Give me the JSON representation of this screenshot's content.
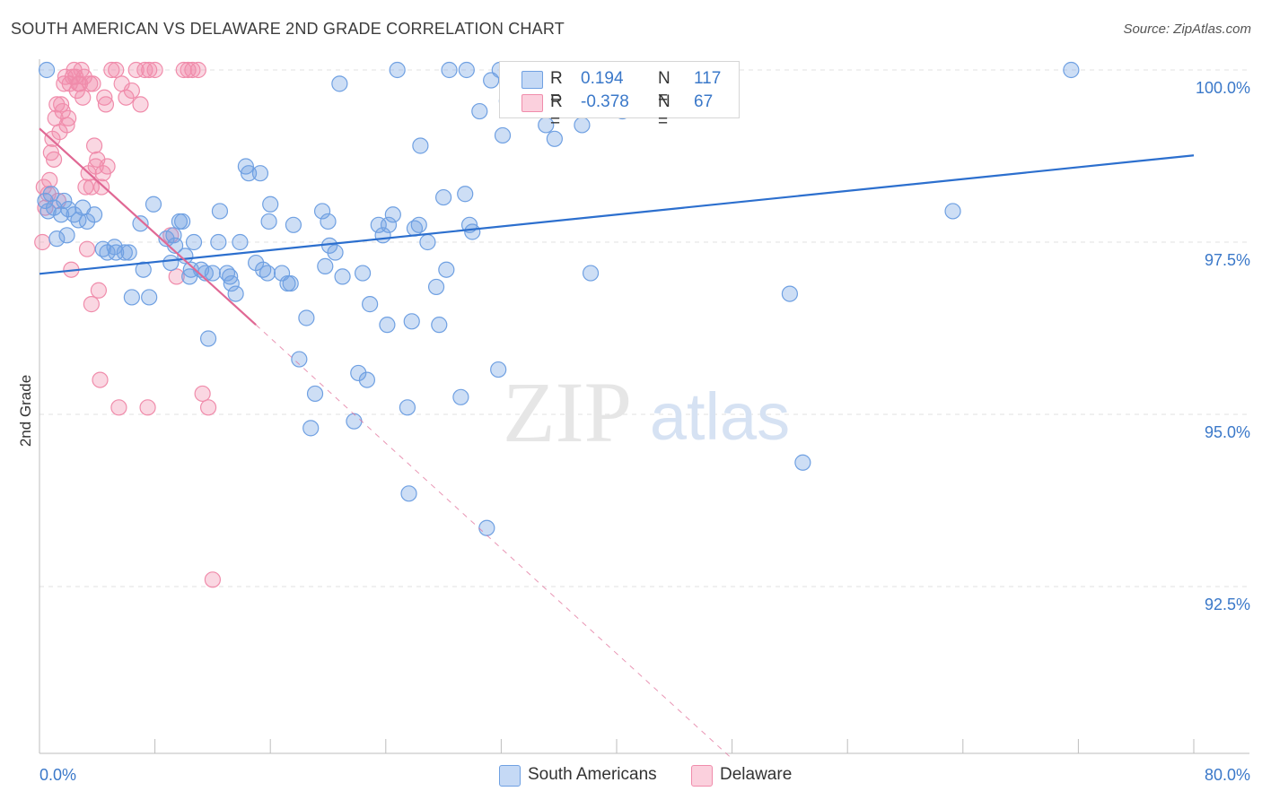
{
  "title": "SOUTH AMERICAN VS DELAWARE 2ND GRADE CORRELATION CHART",
  "source": "Source: ZipAtlas.com",
  "watermark": {
    "zip": "ZIP",
    "atlas": "atlas"
  },
  "legend": {
    "r_label": "R =",
    "n_label": "N =",
    "series": [
      {
        "r": "0.194",
        "n": "117"
      },
      {
        "r": "-0.378",
        "n": "67"
      }
    ]
  },
  "chart_data": {
    "type": "scatter",
    "title": "SOUTH AMERICAN VS DELAWARE 2ND GRADE CORRELATION CHART",
    "xlabel": "",
    "ylabel": "2nd Grade",
    "xlim": [
      0,
      80
    ],
    "ylim": [
      90.0,
      100.25
    ],
    "x_tick_labels": [
      "0.0%",
      "80.0%"
    ],
    "y_ticks": [
      100.0,
      97.5,
      95.0,
      92.5
    ],
    "y_tick_labels": [
      "100.0%",
      "97.5%",
      "95.0%",
      "92.5%"
    ],
    "grid": true,
    "colors": {
      "south_americans": "#6fa0e2",
      "delaware": "#f08cab",
      "blue_line": "#2c6fce",
      "pink_line": "#e06894"
    },
    "series": [
      {
        "name": "South Americans",
        "color": "#6fa0e2",
        "points": [
          [
            0.4,
            98.1
          ],
          [
            0.6,
            97.95
          ],
          [
            0.8,
            98.2
          ],
          [
            1.0,
            98.0
          ],
          [
            1.2,
            97.55
          ],
          [
            1.5,
            97.9
          ],
          [
            1.9,
            97.6
          ],
          [
            2.0,
            97.98
          ],
          [
            2.4,
            97.9
          ],
          [
            2.7,
            97.82
          ],
          [
            3.0,
            98.0
          ],
          [
            3.3,
            97.8
          ],
          [
            3.8,
            97.9
          ],
          [
            4.4,
            97.4
          ],
          [
            4.7,
            97.35
          ],
          [
            5.2,
            97.43
          ],
          [
            5.3,
            97.35
          ],
          [
            5.9,
            97.35
          ],
          [
            6.2,
            97.35
          ],
          [
            6.4,
            96.7
          ],
          [
            7.0,
            97.77
          ],
          [
            7.2,
            97.1
          ],
          [
            7.6,
            96.7
          ],
          [
            7.9,
            98.05
          ],
          [
            8.8,
            97.55
          ],
          [
            9.1,
            97.2
          ],
          [
            9.4,
            97.45
          ],
          [
            9.7,
            97.8
          ],
          [
            9.9,
            97.8
          ],
          [
            10.1,
            97.3
          ],
          [
            10.4,
            97.0
          ],
          [
            10.5,
            97.1
          ],
          [
            10.7,
            97.5
          ],
          [
            11.5,
            97.05
          ],
          [
            11.7,
            96.1
          ],
          [
            12.0,
            97.05
          ],
          [
            12.4,
            97.5
          ],
          [
            12.5,
            97.95
          ],
          [
            13.0,
            97.05
          ],
          [
            13.3,
            96.9
          ],
          [
            13.6,
            96.75
          ],
          [
            13.9,
            97.5
          ],
          [
            14.3,
            98.6
          ],
          [
            14.5,
            98.5
          ],
          [
            15.0,
            97.2
          ],
          [
            15.3,
            98.5
          ],
          [
            15.5,
            97.1
          ],
          [
            15.8,
            97.05
          ],
          [
            15.9,
            97.8
          ],
          [
            16.0,
            98.05
          ],
          [
            16.8,
            97.05
          ],
          [
            17.2,
            96.9
          ],
          [
            17.4,
            96.9
          ],
          [
            17.6,
            97.75
          ],
          [
            18.0,
            95.8
          ],
          [
            18.5,
            96.4
          ],
          [
            18.8,
            94.8
          ],
          [
            19.1,
            95.3
          ],
          [
            19.6,
            97.95
          ],
          [
            19.8,
            97.15
          ],
          [
            20.1,
            97.45
          ],
          [
            20.5,
            97.35
          ],
          [
            20.8,
            99.8
          ],
          [
            21.0,
            97.0
          ],
          [
            21.8,
            94.9
          ],
          [
            22.1,
            95.6
          ],
          [
            22.4,
            97.05
          ],
          [
            22.7,
            95.5
          ],
          [
            22.9,
            96.6
          ],
          [
            23.5,
            97.75
          ],
          [
            23.8,
            97.6
          ],
          [
            24.1,
            96.3
          ],
          [
            24.2,
            97.75
          ],
          [
            24.5,
            97.9
          ],
          [
            25.5,
            95.1
          ],
          [
            25.6,
            93.85
          ],
          [
            25.8,
            96.35
          ],
          [
            26.3,
            97.75
          ],
          [
            26.4,
            98.9
          ],
          [
            26.9,
            97.5
          ],
          [
            27.5,
            96.85
          ],
          [
            27.7,
            96.3
          ],
          [
            28.0,
            98.15
          ],
          [
            28.2,
            97.1
          ],
          [
            29.2,
            95.25
          ],
          [
            29.5,
            98.2
          ],
          [
            29.8,
            97.75
          ],
          [
            30.0,
            97.65
          ],
          [
            30.5,
            99.4
          ],
          [
            31.0,
            93.35
          ],
          [
            31.3,
            99.85
          ],
          [
            31.8,
            95.65
          ],
          [
            32.1,
            99.05
          ],
          [
            32.4,
            99.55
          ],
          [
            33.8,
            99.5
          ],
          [
            35.1,
            99.2
          ],
          [
            35.7,
            99.0
          ],
          [
            36.7,
            99.5
          ],
          [
            37.6,
            99.2
          ],
          [
            38.2,
            97.05
          ],
          [
            38.5,
            100.0
          ],
          [
            39.2,
            100.0
          ],
          [
            40.4,
            99.4
          ],
          [
            52.0,
            96.75
          ],
          [
            52.9,
            94.3
          ],
          [
            63.3,
            97.95
          ],
          [
            71.5,
            100.0
          ],
          [
            0.5,
            100.0
          ],
          [
            24.8,
            100.0
          ],
          [
            28.4,
            100.0
          ],
          [
            29.6,
            100.0
          ],
          [
            31.9,
            100.0
          ],
          [
            33.5,
            100.0
          ],
          [
            36.9,
            99.6
          ],
          [
            1.7,
            98.1
          ],
          [
            9.3,
            97.6
          ],
          [
            13.2,
            97.0
          ],
          [
            20.0,
            97.8
          ],
          [
            26.0,
            97.7
          ],
          [
            11.2,
            97.1
          ]
        ]
      },
      {
        "name": "Delaware",
        "color": "#f08cab",
        "points": [
          [
            0.2,
            97.5
          ],
          [
            0.3,
            98.3
          ],
          [
            0.4,
            98.0
          ],
          [
            0.6,
            98.2
          ],
          [
            0.7,
            98.4
          ],
          [
            0.8,
            98.8
          ],
          [
            0.9,
            99.0
          ],
          [
            1.0,
            98.7
          ],
          [
            1.1,
            99.3
          ],
          [
            1.2,
            99.5
          ],
          [
            1.3,
            98.1
          ],
          [
            1.4,
            99.1
          ],
          [
            1.5,
            99.5
          ],
          [
            1.6,
            99.4
          ],
          [
            1.7,
            99.8
          ],
          [
            1.8,
            99.9
          ],
          [
            1.9,
            99.2
          ],
          [
            2.0,
            99.3
          ],
          [
            2.1,
            99.8
          ],
          [
            2.2,
            97.1
          ],
          [
            2.3,
            99.9
          ],
          [
            2.4,
            100.0
          ],
          [
            2.5,
            99.9
          ],
          [
            2.6,
            99.7
          ],
          [
            2.7,
            99.8
          ],
          [
            2.8,
            99.8
          ],
          [
            2.9,
            100.0
          ],
          [
            3.0,
            99.6
          ],
          [
            3.1,
            99.9
          ],
          [
            3.2,
            98.3
          ],
          [
            3.3,
            97.4
          ],
          [
            3.4,
            98.5
          ],
          [
            3.5,
            99.8
          ],
          [
            3.6,
            98.3
          ],
          [
            3.7,
            99.8
          ],
          [
            3.8,
            98.9
          ],
          [
            3.9,
            98.6
          ],
          [
            4.0,
            98.7
          ],
          [
            4.1,
            96.8
          ],
          [
            4.2,
            95.5
          ],
          [
            4.3,
            98.3
          ],
          [
            4.4,
            98.5
          ],
          [
            4.5,
            99.6
          ],
          [
            4.6,
            99.5
          ],
          [
            4.7,
            98.6
          ],
          [
            5.0,
            100.0
          ],
          [
            5.3,
            100.0
          ],
          [
            5.7,
            99.8
          ],
          [
            6.0,
            99.6
          ],
          [
            6.4,
            99.7
          ],
          [
            6.7,
            100.0
          ],
          [
            7.0,
            99.5
          ],
          [
            7.3,
            100.0
          ],
          [
            7.6,
            100.0
          ],
          [
            8.0,
            100.0
          ],
          [
            10.0,
            100.0
          ],
          [
            10.3,
            100.0
          ],
          [
            10.6,
            100.0
          ],
          [
            11.0,
            100.0
          ],
          [
            11.3,
            95.3
          ],
          [
            11.7,
            95.1
          ],
          [
            12.0,
            92.6
          ],
          [
            9.1,
            97.6
          ],
          [
            9.5,
            97.0
          ],
          [
            7.5,
            95.1
          ],
          [
            5.5,
            95.1
          ],
          [
            3.6,
            96.6
          ]
        ]
      }
    ],
    "trend_lines": [
      {
        "series": "South Americans",
        "x": [
          0,
          80
        ],
        "y": [
          97.04,
          98.76
        ],
        "style": "solid"
      },
      {
        "series": "Delaware",
        "x": [
          0,
          15
        ],
        "y": [
          99.15,
          96.3
        ],
        "style": "solid"
      },
      {
        "series": "Delaware",
        "x": [
          15,
          48
        ],
        "y": [
          96.3,
          90.0
        ],
        "style": "dashed"
      }
    ]
  },
  "bottom_legend": [
    {
      "label": "South Americans"
    },
    {
      "label": "Delaware"
    }
  ]
}
